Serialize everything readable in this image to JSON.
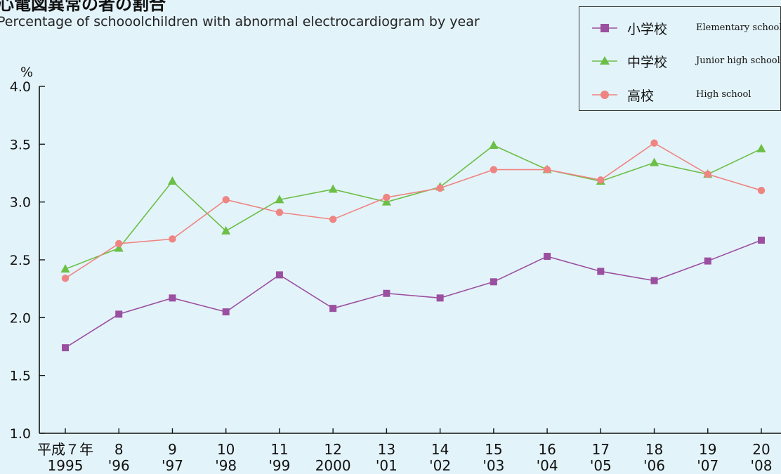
{
  "header": {
    "title": "心電図異常の者の割合",
    "subtitle": "Percentage of schooolchildren with abnormal electrocardiogram by year"
  },
  "colors": {
    "elementary": "#9b4fa0",
    "junior": "#6cbf46",
    "high": "#ee8582",
    "background": "#e3f3fa",
    "axis": "#111111"
  },
  "legend": {
    "items": [
      {
        "jp": "小学校",
        "en": "Elementary school",
        "marker": "square"
      },
      {
        "jp": "中学校",
        "en": "Junior high school",
        "marker": "triangle"
      },
      {
        "jp": "高校",
        "en": "High school",
        "marker": "circle"
      }
    ]
  },
  "chart_data": {
    "type": "line",
    "ylabel": "%",
    "ylim": [
      1.0,
      4.0
    ],
    "yticks": [
      "1.0",
      "1.5",
      "2.0",
      "2.5",
      "3.0",
      "3.5",
      "4.0"
    ],
    "x_labels_top": [
      "平成７年",
      "8",
      "9",
      "10",
      "11",
      "12",
      "13",
      "14",
      "15",
      "16",
      "17",
      "18",
      "19",
      "20"
    ],
    "x_labels_bottom": [
      "1995",
      "'96",
      "'97",
      "'98",
      "'99",
      "2000",
      "'01",
      "'02",
      "'03",
      "'04",
      "'05",
      "'06",
      "'07",
      "'08"
    ],
    "x": [
      1995,
      1996,
      1997,
      1998,
      1999,
      2000,
      2001,
      2002,
      2003,
      2004,
      2005,
      2006,
      2007,
      2008
    ],
    "series": [
      {
        "name": "小学校 Elementary school",
        "marker": "square",
        "values": [
          1.74,
          2.03,
          2.17,
          2.05,
          2.37,
          2.08,
          2.21,
          2.17,
          2.31,
          2.53,
          2.4,
          2.32,
          2.49,
          2.67
        ]
      },
      {
        "name": "中学校 Junior high school",
        "marker": "triangle",
        "values": [
          2.42,
          2.6,
          3.18,
          2.75,
          3.02,
          3.11,
          3.0,
          3.13,
          3.49,
          3.28,
          3.18,
          3.34,
          3.24,
          3.46
        ]
      },
      {
        "name": "高校 High school",
        "marker": "circle",
        "values": [
          2.34,
          2.64,
          2.68,
          3.02,
          2.91,
          2.85,
          3.04,
          3.12,
          3.28,
          3.28,
          3.19,
          3.51,
          3.24,
          3.1
        ]
      }
    ],
    "grid": false,
    "legend_position": "top-right"
  }
}
